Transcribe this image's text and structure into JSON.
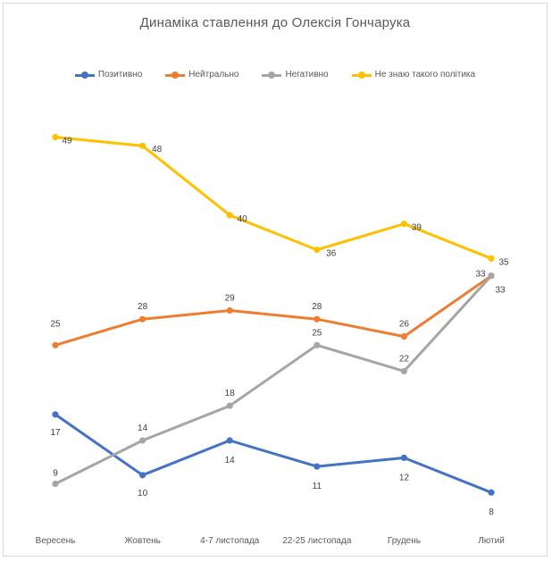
{
  "chart_data": {
    "type": "line",
    "title": "Динаміка ставлення до Олексія Гончарука",
    "categories": [
      "Вересень",
      "Жовтень",
      "4-7 листопада",
      "22-25 листопада",
      "Грудень",
      "Лютий"
    ],
    "series": [
      {
        "name": "Позитивно",
        "color": "#4472C4",
        "values": [
          17,
          10,
          14,
          11,
          12,
          8
        ]
      },
      {
        "name": "Нейтрально",
        "color": "#ED7D31",
        "values": [
          25,
          28,
          29,
          28,
          26,
          33
        ]
      },
      {
        "name": "Негативно",
        "color": "#A5A5A5",
        "values": [
          9,
          14,
          18,
          25,
          22,
          33
        ]
      },
      {
        "name": "Не знаю такого політика",
        "color": "#FFC000",
        "values": [
          49,
          48,
          40,
          36,
          39,
          35
        ]
      }
    ],
    "ylim": [
      4,
      54
    ],
    "grid": false,
    "legend_position": "top"
  }
}
